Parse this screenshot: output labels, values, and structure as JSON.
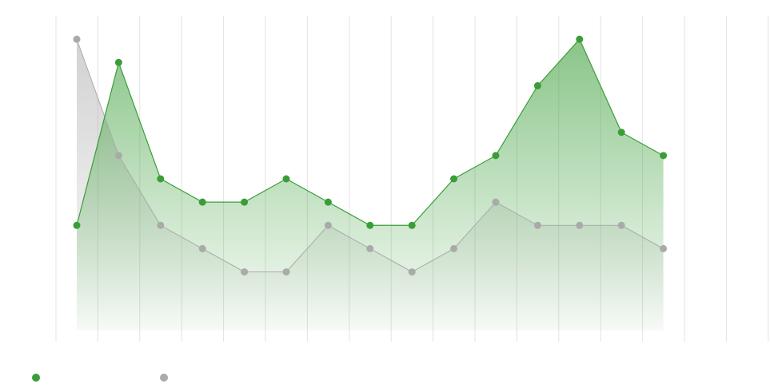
{
  "chart_data": {
    "type": "area",
    "title": "",
    "xlabel": "",
    "ylabel": "",
    "x": [
      1,
      2,
      3,
      4,
      5,
      6,
      7,
      8,
      9,
      10,
      11,
      12,
      13,
      14,
      15
    ],
    "ylim": [
      0,
      14
    ],
    "grid": {
      "vertical": true,
      "horizontal": false
    },
    "legend": "bottom-left",
    "series": [
      {
        "color": "#3a9e38",
        "fill": "gradient",
        "values": [
          5,
          12,
          7,
          6,
          6,
          7,
          6,
          5,
          5,
          7,
          8,
          11,
          13,
          9,
          8
        ]
      },
      {
        "color": "#aaaaaa",
        "fill": "gradient",
        "values": [
          13,
          8,
          5,
          4,
          3,
          3,
          5,
          4,
          3,
          4,
          6,
          5,
          5,
          5,
          4
        ]
      }
    ]
  }
}
